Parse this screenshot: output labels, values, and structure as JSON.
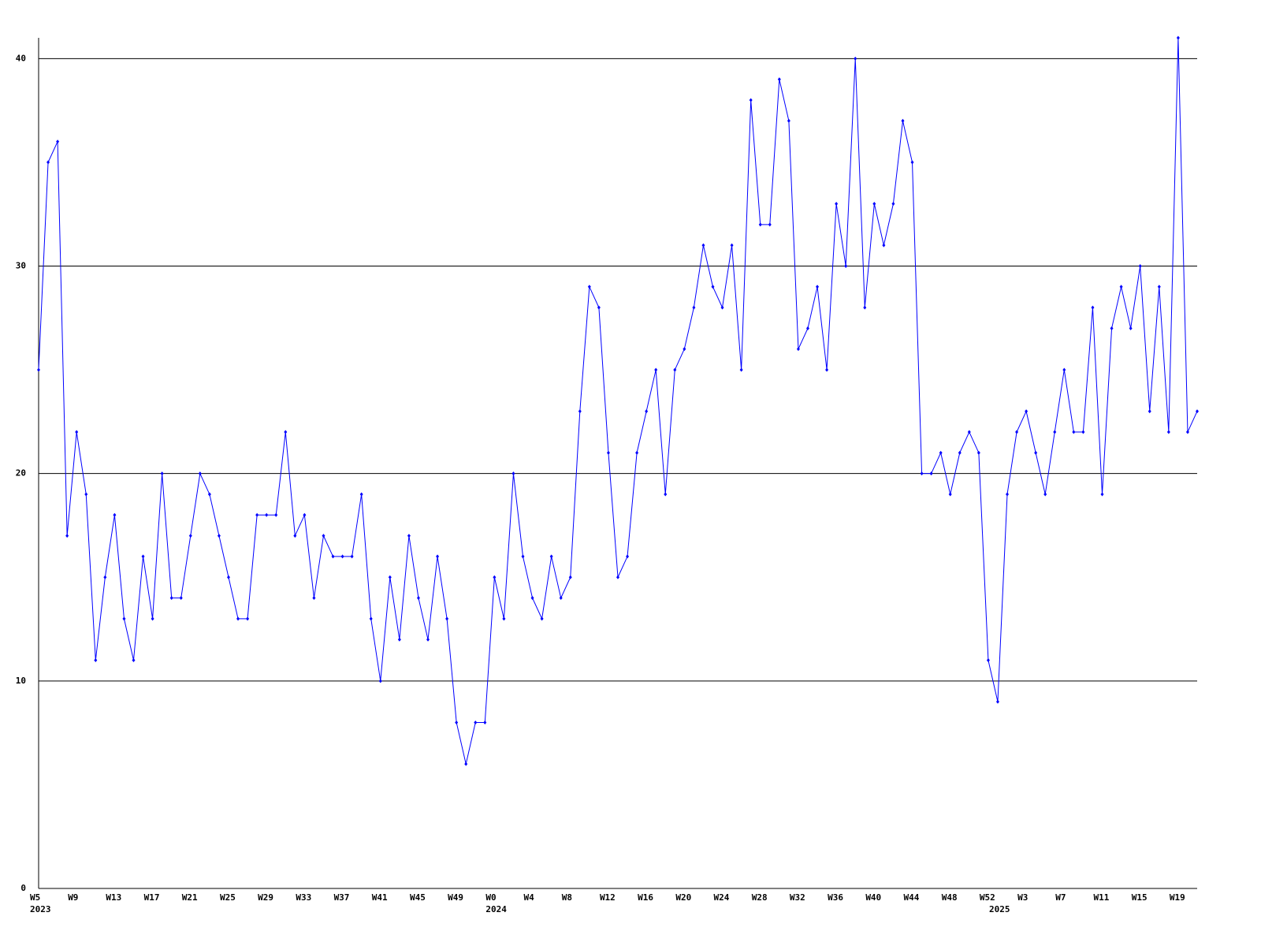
{
  "chart_data": {
    "type": "line",
    "categories": [
      "W5",
      null,
      null,
      null,
      "W9",
      null,
      null,
      null,
      "W13",
      null,
      null,
      null,
      "W17",
      null,
      null,
      null,
      "W21",
      null,
      null,
      null,
      "W25",
      null,
      null,
      null,
      "W29",
      null,
      null,
      null,
      "W33",
      null,
      null,
      null,
      "W37",
      null,
      null,
      null,
      "W41",
      null,
      null,
      null,
      "W45",
      null,
      null,
      null,
      "W49",
      null,
      null,
      null,
      "W0",
      null,
      null,
      null,
      "W4",
      null,
      null,
      null,
      "W8",
      null,
      null,
      null,
      "W12",
      null,
      null,
      null,
      "W16",
      null,
      null,
      null,
      "W20",
      null,
      null,
      null,
      "W24",
      null,
      null,
      null,
      "W28",
      null,
      null,
      null,
      "W32",
      null,
      null,
      null,
      "W36",
      null,
      null,
      null,
      "W40",
      null,
      null,
      null,
      "W44",
      null,
      null,
      null,
      "W48",
      null,
      null,
      null,
      "W52",
      null,
      null,
      null,
      "W3",
      null,
      null,
      null,
      "W7",
      null,
      null,
      null,
      "W11",
      null,
      null,
      null,
      "W15",
      null,
      null,
      null,
      "W19",
      null,
      null
    ],
    "years": [
      "2023",
      null,
      null,
      null,
      null,
      null,
      null,
      null,
      null,
      null,
      null,
      null,
      null,
      null,
      null,
      null,
      null,
      null,
      null,
      null,
      null,
      null,
      null,
      null,
      null,
      null,
      null,
      null,
      null,
      null,
      null,
      null,
      null,
      null,
      null,
      null,
      null,
      null,
      null,
      null,
      null,
      null,
      null,
      null,
      null,
      null,
      null,
      null,
      "2024",
      null,
      null,
      null,
      null,
      null,
      null,
      null,
      null,
      null,
      null,
      null,
      null,
      null,
      null,
      null,
      null,
      null,
      null,
      null,
      null,
      null,
      null,
      null,
      null,
      null,
      null,
      null,
      null,
      null,
      null,
      null,
      null,
      null,
      null,
      null,
      null,
      null,
      null,
      null,
      null,
      null,
      null,
      null,
      null,
      null,
      null,
      null,
      null,
      null,
      null,
      null,
      null,
      "2025",
      null,
      null,
      null,
      null,
      null,
      null,
      null,
      null,
      null,
      null,
      null,
      null,
      null,
      null,
      null,
      null,
      null,
      null,
      null,
      null
    ],
    "series": [
      {
        "color": "#0000ff",
        "values": [
          25,
          35,
          36,
          17,
          22,
          19,
          11,
          15,
          18,
          13,
          11,
          16,
          13,
          20,
          14,
          14,
          17,
          20,
          19,
          17,
          15,
          13,
          13,
          18,
          18,
          18,
          22,
          17,
          18,
          14,
          17,
          16,
          16,
          16,
          19,
          13,
          10,
          15,
          12,
          17,
          14,
          12,
          16,
          13,
          8,
          6,
          8,
          8,
          15,
          13,
          20,
          16,
          14,
          13,
          16,
          14,
          15,
          23,
          29,
          28,
          21,
          15,
          16,
          21,
          23,
          25,
          19,
          25,
          26,
          28,
          31,
          29,
          28,
          31,
          25,
          38,
          32,
          32,
          39,
          37,
          26,
          27,
          29,
          25,
          33,
          30,
          40,
          28,
          33,
          31,
          33,
          37,
          35,
          20,
          20,
          21,
          19,
          21,
          22,
          21,
          11,
          9,
          19,
          22,
          23,
          21,
          19,
          22,
          25,
          22,
          22,
          28,
          19,
          27,
          29,
          27,
          30,
          23,
          29,
          22,
          41,
          22,
          23
        ]
      }
    ],
    "ylim": [
      0,
      41
    ],
    "yticks": [
      0,
      10,
      20,
      30,
      40
    ],
    "grid": true
  }
}
